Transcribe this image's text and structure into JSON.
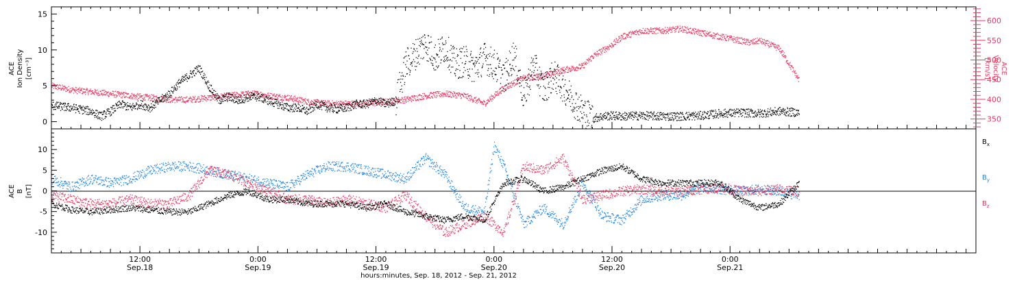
{
  "colors": {
    "axis": "#000000",
    "black_series": "#000000",
    "blue_series": "#1f86e0",
    "red_series": "#e8365e"
  },
  "x_axis": {
    "range_hours": [
      0,
      94
    ],
    "start_reference": "Sep. 18, 2012 03:00",
    "ticks": [
      {
        "hour": 9,
        "time": "12:00",
        "date": "Sep.18"
      },
      {
        "hour": 21,
        "time": "0:00",
        "date": "Sep.19"
      },
      {
        "hour": 33,
        "time": "12:00",
        "date": "Sep.19"
      },
      {
        "hour": 45,
        "time": "0:00",
        "date": "Sep.20"
      },
      {
        "hour": 57,
        "time": "12:00",
        "date": "Sep.20"
      },
      {
        "hour": 69,
        "time": "0:00",
        "date": "Sep.21"
      }
    ],
    "label": "hours:minutes, Sep. 18, 2012 - Sep. 21, 2012"
  },
  "panels": {
    "top": {
      "left_label": [
        "ACE",
        "Ion Density",
        "[cm⁻³]"
      ],
      "right_label": [
        "ACE",
        "Velocity",
        "[km/s]"
      ],
      "left_ticks": [
        "0",
        "5",
        "10",
        "15"
      ],
      "right_ticks": [
        "350",
        "400",
        "450",
        "500",
        "550",
        "600"
      ]
    },
    "bottom": {
      "left_label": [
        "ACE",
        "B",
        "[nT]"
      ],
      "left_ticks": [
        "-10",
        "-5",
        "0",
        "5",
        "10"
      ],
      "legend": [
        {
          "label": "B",
          "sub": "x",
          "color": "#000000"
        },
        {
          "label": "B",
          "sub": "y",
          "color": "#1f86e0"
        },
        {
          "label": "B",
          "sub": "z",
          "color": "#e8365e"
        }
      ]
    }
  },
  "chart_data": [
    {
      "type": "scatter",
      "panel": "top",
      "xlabel": "hours:minutes, Sep. 18, 2012 - Sep. 21, 2012",
      "x_unit": "hours since Sep. 18, 2012 03:00",
      "xlim": [
        0,
        94
      ],
      "series": [
        {
          "axis": "left",
          "ylabel": "ACE Ion Density [cm⁻³]",
          "ylim": [
            -1,
            16
          ],
          "color": "#000000",
          "points": [
            [
              0,
              2.3
            ],
            [
              2,
              2.0
            ],
            [
              4,
              1.5
            ],
            [
              5,
              0.8
            ],
            [
              6,
              1.5
            ],
            [
              7,
              2.5
            ],
            [
              8,
              2.0
            ],
            [
              9,
              2.5
            ],
            [
              10,
              2.0
            ],
            [
              11,
              3.0
            ],
            [
              12,
              4.0
            ],
            [
              13,
              5.5
            ],
            [
              14,
              6.5
            ],
            [
              15,
              7.5
            ],
            [
              16,
              5.0
            ],
            [
              17,
              3.0
            ],
            [
              18,
              3.5
            ],
            [
              19,
              3.0
            ],
            [
              20,
              3.5
            ],
            [
              21,
              3.5
            ],
            [
              22,
              3.0
            ],
            [
              23,
              2.5
            ],
            [
              24,
              2.0
            ],
            [
              25,
              2.0
            ],
            [
              26,
              1.5
            ],
            [
              27,
              2.5
            ],
            [
              28,
              2.0
            ],
            [
              29,
              1.8
            ],
            [
              30,
              2.0
            ],
            [
              31,
              2.5
            ],
            [
              32,
              2.5
            ],
            [
              33,
              3.0
            ],
            [
              34,
              2.5
            ],
            [
              35,
              3.0
            ],
            [
              36,
              8.0
            ],
            [
              37,
              9.5
            ],
            [
              38,
              11.0
            ],
            [
              39,
              9.0
            ],
            [
              40,
              10.5
            ],
            [
              41,
              8.0
            ],
            [
              42,
              8.5
            ],
            [
              43,
              7.5
            ],
            [
              44,
              9.0
            ],
            [
              45,
              8.0
            ],
            [
              46,
              6.0
            ],
            [
              47,
              9.5
            ],
            [
              48,
              3.5
            ],
            [
              49,
              8.0
            ],
            [
              50,
              4.5
            ],
            [
              51,
              6.5
            ],
            [
              52,
              5.0
            ],
            [
              53,
              3.0
            ],
            [
              54,
              1.5
            ],
            [
              55,
              0.5
            ],
            [
              56,
              0.8
            ],
            [
              57,
              0.9
            ],
            [
              58,
              0.8
            ],
            [
              60,
              0.9
            ],
            [
              62,
              0.8
            ],
            [
              64,
              0.8
            ],
            [
              66,
              0.9
            ],
            [
              68,
              1.2
            ],
            [
              70,
              1.3
            ],
            [
              72,
              1.2
            ],
            [
              74,
              1.5
            ],
            [
              76,
              1.3
            ]
          ]
        },
        {
          "axis": "right",
          "ylabel": "ACE Velocity [km/s]",
          "ylim": [
            325,
            635
          ],
          "color": "#e8365e",
          "points": [
            [
              0,
              435
            ],
            [
              2,
              425
            ],
            [
              4,
              420
            ],
            [
              6,
              415
            ],
            [
              8,
              410
            ],
            [
              10,
              405
            ],
            [
              12,
              400
            ],
            [
              14,
              400
            ],
            [
              16,
              405
            ],
            [
              18,
              410
            ],
            [
              20,
              415
            ],
            [
              21,
              415
            ],
            [
              22,
              410
            ],
            [
              24,
              405
            ],
            [
              26,
              395
            ],
            [
              28,
              390
            ],
            [
              30,
              390
            ],
            [
              32,
              390
            ],
            [
              34,
              395
            ],
            [
              36,
              400
            ],
            [
              38,
              410
            ],
            [
              40,
              415
            ],
            [
              42,
              410
            ],
            [
              44,
              390
            ],
            [
              45,
              410
            ],
            [
              46,
              430
            ],
            [
              48,
              455
            ],
            [
              50,
              460
            ],
            [
              52,
              475
            ],
            [
              54,
              485
            ],
            [
              55,
              510
            ],
            [
              56,
              525
            ],
            [
              57,
              540
            ],
            [
              58,
              560
            ],
            [
              60,
              575
            ],
            [
              62,
              575
            ],
            [
              64,
              580
            ],
            [
              66,
              570
            ],
            [
              68,
              560
            ],
            [
              70,
              550
            ],
            [
              71,
              545
            ],
            [
              72,
              550
            ],
            [
              74,
              530
            ],
            [
              75,
              490
            ],
            [
              76,
              450
            ]
          ]
        }
      ]
    },
    {
      "type": "scatter",
      "panel": "bottom",
      "ylabel": "ACE B [nT]",
      "xlim": [
        0,
        94
      ],
      "ylim": [
        -15,
        15
      ],
      "series": [
        {
          "name": "Bx",
          "color": "#000000",
          "points": [
            [
              0,
              -3
            ],
            [
              2,
              -4.5
            ],
            [
              4,
              -5
            ],
            [
              6,
              -4.5
            ],
            [
              8,
              -4
            ],
            [
              10,
              -4.5
            ],
            [
              12,
              -5
            ],
            [
              14,
              -5
            ],
            [
              16,
              -3
            ],
            [
              18,
              -1
            ],
            [
              20,
              0
            ],
            [
              22,
              -2
            ],
            [
              24,
              -2
            ],
            [
              26,
              -3
            ],
            [
              28,
              -3
            ],
            [
              30,
              -3
            ],
            [
              32,
              -4
            ],
            [
              34,
              -3
            ],
            [
              36,
              -5
            ],
            [
              38,
              -6
            ],
            [
              40,
              -7
            ],
            [
              42,
              -6
            ],
            [
              44,
              -7
            ],
            [
              46,
              2
            ],
            [
              48,
              3
            ],
            [
              50,
              0
            ],
            [
              52,
              1
            ],
            [
              54,
              3
            ],
            [
              56,
              5
            ],
            [
              58,
              6
            ],
            [
              60,
              3
            ],
            [
              62,
              2
            ],
            [
              64,
              2
            ],
            [
              66,
              2
            ],
            [
              68,
              2
            ],
            [
              70,
              -2
            ],
            [
              72,
              -4
            ],
            [
              74,
              -3
            ],
            [
              76,
              2
            ]
          ]
        },
        {
          "name": "By",
          "color": "#1f86e0",
          "points": [
            [
              0,
              3
            ],
            [
              2,
              1
            ],
            [
              4,
              3
            ],
            [
              6,
              2
            ],
            [
              8,
              3
            ],
            [
              10,
              5
            ],
            [
              12,
              6
            ],
            [
              14,
              6
            ],
            [
              16,
              5
            ],
            [
              18,
              4
            ],
            [
              20,
              3
            ],
            [
              22,
              2
            ],
            [
              24,
              1
            ],
            [
              26,
              4
            ],
            [
              28,
              6
            ],
            [
              30,
              6
            ],
            [
              32,
              5
            ],
            [
              34,
              4
            ],
            [
              36,
              3
            ],
            [
              38,
              8
            ],
            [
              40,
              4
            ],
            [
              42,
              -4
            ],
            [
              44,
              -5
            ],
            [
              45,
              11
            ],
            [
              46,
              6
            ],
            [
              48,
              -8
            ],
            [
              50,
              -4
            ],
            [
              52,
              -8
            ],
            [
              54,
              2
            ],
            [
              56,
              -6
            ],
            [
              58,
              -7
            ],
            [
              60,
              -2
            ],
            [
              62,
              -1
            ],
            [
              64,
              -1
            ],
            [
              66,
              1
            ],
            [
              68,
              0.5
            ],
            [
              70,
              0
            ],
            [
              72,
              0.5
            ],
            [
              74,
              0
            ],
            [
              76,
              -1
            ]
          ]
        },
        {
          "name": "Bz",
          "color": "#e8365e",
          "points": [
            [
              0,
              -1
            ],
            [
              2,
              -2
            ],
            [
              4,
              -3
            ],
            [
              6,
              -3
            ],
            [
              8,
              -2
            ],
            [
              10,
              -3
            ],
            [
              12,
              -3
            ],
            [
              14,
              -1
            ],
            [
              16,
              5
            ],
            [
              18,
              4
            ],
            [
              20,
              2
            ],
            [
              22,
              0
            ],
            [
              24,
              -2
            ],
            [
              26,
              -2
            ],
            [
              28,
              -3
            ],
            [
              30,
              -2
            ],
            [
              32,
              -3
            ],
            [
              34,
              -4
            ],
            [
              36,
              -1
            ],
            [
              38,
              -6
            ],
            [
              40,
              -10
            ],
            [
              42,
              -8
            ],
            [
              44,
              -6
            ],
            [
              46,
              -10
            ],
            [
              48,
              6
            ],
            [
              50,
              5
            ],
            [
              52,
              8
            ],
            [
              54,
              -2
            ],
            [
              56,
              -1
            ],
            [
              58,
              0
            ],
            [
              60,
              0.5
            ],
            [
              62,
              0
            ],
            [
              64,
              0
            ],
            [
              66,
              0.5
            ],
            [
              68,
              1
            ],
            [
              70,
              0
            ],
            [
              72,
              0
            ],
            [
              74,
              0.5
            ],
            [
              76,
              0
            ]
          ]
        }
      ]
    }
  ]
}
